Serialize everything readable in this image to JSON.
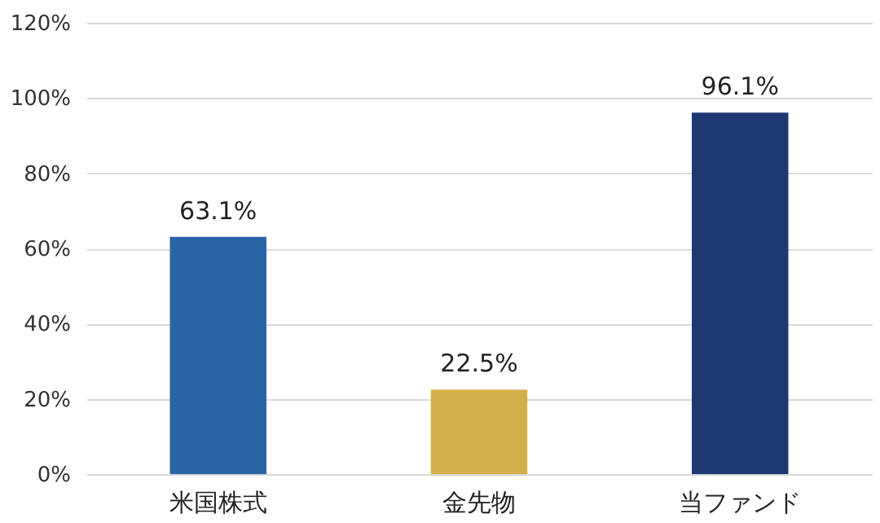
{
  "chart_data": {
    "type": "bar",
    "categories": [
      "米国株式",
      "金先物",
      "当ファンド"
    ],
    "values": [
      63.1,
      22.5,
      96.1
    ],
    "colors": [
      "#2b64a6",
      "#d4b04a",
      "#1f3873"
    ],
    "value_labels": [
      "63.1%",
      "22.5%",
      "96.1%"
    ],
    "ylim": [
      0,
      120
    ],
    "yticks": [
      {
        "value": 0,
        "label": "0%"
      },
      {
        "value": 20,
        "label": "20%"
      },
      {
        "value": 40,
        "label": "40%"
      },
      {
        "value": 60,
        "label": "60%"
      },
      {
        "value": 80,
        "label": "80%"
      },
      {
        "value": 100,
        "label": "100%"
      },
      {
        "value": 120,
        "label": "120%"
      }
    ],
    "grid": "y",
    "legend": false
  }
}
